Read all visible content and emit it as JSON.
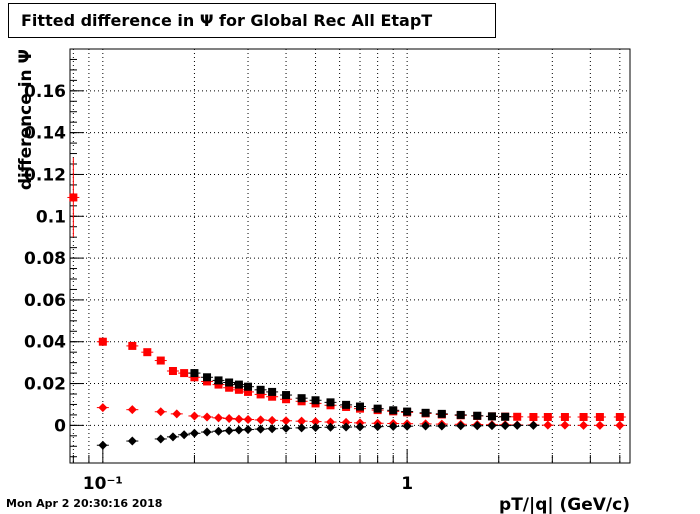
{
  "header": {
    "title": "Fitted difference in  Ψ  for Global Rec All EtapT"
  },
  "footer": {
    "timestamp": "Mon Apr  2 20:30:16 2018"
  },
  "chart_data": {
    "type": "scatter",
    "title": "Fitted difference in  Ψ  for Global Rec All EtapT",
    "xlabel": "pT/|q| (GeV/c)",
    "ylabel": "difference in  Ψ",
    "xscale": "log",
    "xlim": [
      0.078,
      5.4
    ],
    "ylim": [
      -0.018,
      0.18
    ],
    "grid": true,
    "x_tick_labels": [
      "10⁻¹",
      "1"
    ],
    "y_ticks": [
      0,
      0.02,
      0.04,
      0.06,
      0.08,
      0.1,
      0.12,
      0.14,
      0.16
    ],
    "y_tick_labels": [
      "0",
      "0.02",
      "0.04",
      "0.06",
      "0.08",
      "0.1",
      "0.12",
      "0.14",
      "0.16"
    ],
    "colors": {
      "red": "#ff0000",
      "black": "#000000"
    },
    "series": [
      {
        "color": "#ff0000",
        "marker": "square",
        "points": [
          {
            "x": 0.08,
            "y": 0.109,
            "err": 0.019
          },
          {
            "x": 0.1,
            "y": 0.04,
            "err": 0.0005
          },
          {
            "x": 0.125,
            "y": 0.038,
            "err": 0.0005
          },
          {
            "x": 0.14,
            "y": 0.035
          },
          {
            "x": 0.155,
            "y": 0.031
          },
          {
            "x": 0.17,
            "y": 0.026
          },
          {
            "x": 0.185,
            "y": 0.025
          },
          {
            "x": 0.2,
            "y": 0.023
          },
          {
            "x": 0.22,
            "y": 0.021
          },
          {
            "x": 0.24,
            "y": 0.0195
          },
          {
            "x": 0.26,
            "y": 0.018
          },
          {
            "x": 0.28,
            "y": 0.017
          },
          {
            "x": 0.3,
            "y": 0.016
          },
          {
            "x": 0.33,
            "y": 0.0148
          },
          {
            "x": 0.36,
            "y": 0.0137
          },
          {
            "x": 0.4,
            "y": 0.0125
          },
          {
            "x": 0.45,
            "y": 0.0115
          },
          {
            "x": 0.5,
            "y": 0.0105
          },
          {
            "x": 0.56,
            "y": 0.0096
          },
          {
            "x": 0.63,
            "y": 0.0088
          },
          {
            "x": 0.7,
            "y": 0.008
          },
          {
            "x": 0.8,
            "y": 0.0073
          },
          {
            "x": 0.9,
            "y": 0.0067
          },
          {
            "x": 1.0,
            "y": 0.0062
          },
          {
            "x": 1.15,
            "y": 0.0057
          },
          {
            "x": 1.3,
            "y": 0.0052
          },
          {
            "x": 1.5,
            "y": 0.0048
          },
          {
            "x": 1.7,
            "y": 0.0045
          },
          {
            "x": 1.9,
            "y": 0.0043
          },
          {
            "x": 2.1,
            "y": 0.0042
          },
          {
            "x": 2.3,
            "y": 0.0041
          },
          {
            "x": 2.6,
            "y": 0.004
          },
          {
            "x": 2.9,
            "y": 0.004
          },
          {
            "x": 3.3,
            "y": 0.004
          },
          {
            "x": 3.8,
            "y": 0.004
          },
          {
            "x": 4.3,
            "y": 0.004
          },
          {
            "x": 5.0,
            "y": 0.004
          }
        ]
      },
      {
        "color": "#000000",
        "marker": "square",
        "points": [
          {
            "x": 0.2,
            "y": 0.025
          },
          {
            "x": 0.22,
            "y": 0.023
          },
          {
            "x": 0.24,
            "y": 0.0215
          },
          {
            "x": 0.26,
            "y": 0.0205
          },
          {
            "x": 0.28,
            "y": 0.0195
          },
          {
            "x": 0.3,
            "y": 0.0185
          },
          {
            "x": 0.33,
            "y": 0.017
          },
          {
            "x": 0.36,
            "y": 0.016
          },
          {
            "x": 0.4,
            "y": 0.0145
          },
          {
            "x": 0.45,
            "y": 0.013
          },
          {
            "x": 0.5,
            "y": 0.012
          },
          {
            "x": 0.56,
            "y": 0.011
          },
          {
            "x": 0.63,
            "y": 0.0098
          },
          {
            "x": 0.7,
            "y": 0.009
          },
          {
            "x": 0.8,
            "y": 0.008
          },
          {
            "x": 0.9,
            "y": 0.0072
          },
          {
            "x": 1.0,
            "y": 0.0066
          },
          {
            "x": 1.15,
            "y": 0.006
          },
          {
            "x": 1.3,
            "y": 0.0055
          },
          {
            "x": 1.5,
            "y": 0.005
          },
          {
            "x": 1.7,
            "y": 0.0046
          },
          {
            "x": 1.9,
            "y": 0.0043
          },
          {
            "x": 2.1,
            "y": 0.0041
          }
        ]
      },
      {
        "color": "#ff0000",
        "marker": "diamond",
        "points": [
          {
            "x": 0.1,
            "y": 0.0085
          },
          {
            "x": 0.125,
            "y": 0.0075
          },
          {
            "x": 0.155,
            "y": 0.0065
          },
          {
            "x": 0.175,
            "y": 0.0055
          },
          {
            "x": 0.2,
            "y": 0.0045
          },
          {
            "x": 0.22,
            "y": 0.004
          },
          {
            "x": 0.24,
            "y": 0.0036
          },
          {
            "x": 0.26,
            "y": 0.0033
          },
          {
            "x": 0.28,
            "y": 0.003
          },
          {
            "x": 0.3,
            "y": 0.0028
          },
          {
            "x": 0.33,
            "y": 0.0026
          },
          {
            "x": 0.36,
            "y": 0.0024
          },
          {
            "x": 0.4,
            "y": 0.0022
          },
          {
            "x": 0.45,
            "y": 0.002
          },
          {
            "x": 0.5,
            "y": 0.0018
          },
          {
            "x": 0.56,
            "y": 0.0016
          },
          {
            "x": 0.63,
            "y": 0.0014
          },
          {
            "x": 0.7,
            "y": 0.0012
          },
          {
            "x": 0.8,
            "y": 0.001
          },
          {
            "x": 0.9,
            "y": 0.0009
          },
          {
            "x": 1.0,
            "y": 0.0008
          },
          {
            "x": 1.15,
            "y": 0.0007
          },
          {
            "x": 1.3,
            "y": 0.0006
          },
          {
            "x": 1.5,
            "y": 0.0005
          },
          {
            "x": 1.7,
            "y": 0.0004
          },
          {
            "x": 1.9,
            "y": 0.0003
          },
          {
            "x": 2.1,
            "y": 0.0003
          },
          {
            "x": 2.3,
            "y": 0.0002
          },
          {
            "x": 2.6,
            "y": 0.0002
          },
          {
            "x": 2.9,
            "y": 0.0001
          },
          {
            "x": 3.3,
            "y": 0.0001
          },
          {
            "x": 3.8,
            "y": 0.0
          },
          {
            "x": 4.3,
            "y": 0.0
          },
          {
            "x": 5.0,
            "y": 0.0
          }
        ]
      },
      {
        "color": "#000000",
        "marker": "diamond",
        "points": [
          {
            "x": 0.1,
            "y": -0.0095
          },
          {
            "x": 0.125,
            "y": -0.0075
          },
          {
            "x": 0.155,
            "y": -0.0065
          },
          {
            "x": 0.17,
            "y": -0.0055
          },
          {
            "x": 0.185,
            "y": -0.0045
          },
          {
            "x": 0.2,
            "y": -0.0038
          },
          {
            "x": 0.22,
            "y": -0.0032
          },
          {
            "x": 0.24,
            "y": -0.0028
          },
          {
            "x": 0.26,
            "y": -0.0025
          },
          {
            "x": 0.28,
            "y": -0.0022
          },
          {
            "x": 0.3,
            "y": -0.002
          },
          {
            "x": 0.33,
            "y": -0.0018
          },
          {
            "x": 0.36,
            "y": -0.0016
          },
          {
            "x": 0.4,
            "y": -0.0014
          },
          {
            "x": 0.45,
            "y": -0.0012
          },
          {
            "x": 0.5,
            "y": -0.001
          },
          {
            "x": 0.56,
            "y": -0.0009
          },
          {
            "x": 0.63,
            "y": -0.0008
          },
          {
            "x": 0.7,
            "y": -0.0007
          },
          {
            "x": 0.8,
            "y": -0.0006
          },
          {
            "x": 0.9,
            "y": -0.0005
          },
          {
            "x": 1.0,
            "y": -0.0004
          },
          {
            "x": 1.15,
            "y": -0.0003
          },
          {
            "x": 1.3,
            "y": -0.0003
          },
          {
            "x": 1.5,
            "y": -0.0002
          },
          {
            "x": 1.7,
            "y": -0.0002
          },
          {
            "x": 1.9,
            "y": -0.0001
          },
          {
            "x": 2.1,
            "y": -0.0001
          },
          {
            "x": 2.3,
            "y": 0.0
          },
          {
            "x": 2.6,
            "y": 0.0
          }
        ]
      }
    ]
  }
}
